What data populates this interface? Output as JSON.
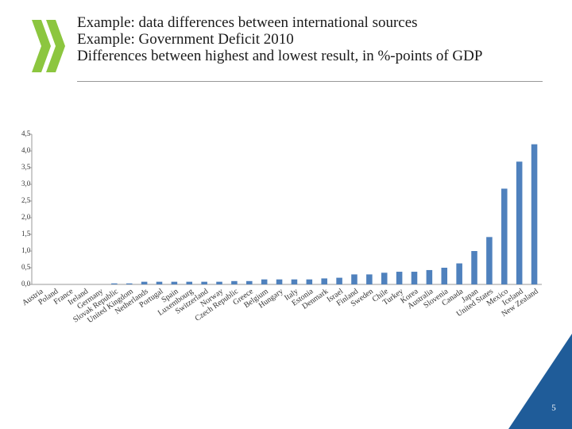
{
  "chart_data": {
    "type": "bar",
    "title_lines": [
      "Example: data differences between international sources",
      "Example: Government Deficit 2010",
      "Differences between highest and lowest result, in %-points of GDP"
    ],
    "categories": [
      "Austria",
      "Poland",
      "France",
      "Ireland",
      "Germany",
      "Slovak Republic",
      "United Kingdom",
      "Netherlands",
      "Portugal",
      "Spain",
      "Luxembourg",
      "Switzerland",
      "Norway",
      "Czech Republic",
      "Greece",
      "Belgium",
      "Hungary",
      "Italy",
      "Estonia",
      "Denmark",
      "Israel",
      "Finland",
      "Sweden",
      "Chile",
      "Turkey",
      "Korea",
      "Australia",
      "Slovenia",
      "Canada",
      "Japan",
      "United States",
      "Mexico",
      "Iceland",
      "New Zealand"
    ],
    "values": [
      0,
      0,
      0,
      0,
      0,
      0.03,
      0.03,
      0.08,
      0.08,
      0.08,
      0.08,
      0.08,
      0.08,
      0.1,
      0.1,
      0.15,
      0.15,
      0.15,
      0.15,
      0.18,
      0.2,
      0.3,
      0.3,
      0.35,
      0.38,
      0.38,
      0.43,
      0.5,
      0.63,
      1.0,
      1.42,
      2.87,
      3.68,
      4.2
    ],
    "color": "#4f81bd",
    "ylim": [
      0,
      4.5
    ],
    "yticks": [
      {
        "value": 0,
        "label": "0,0"
      },
      {
        "value": 0.5,
        "label": "0,5"
      },
      {
        "value": 1,
        "label": "1,0"
      },
      {
        "value": 1.5,
        "label": "1,5"
      },
      {
        "value": 2,
        "label": "2,0"
      },
      {
        "value": 2.5,
        "label": "2,5"
      },
      {
        "value": 3,
        "label": "3,0"
      },
      {
        "value": 3.5,
        "label": "3,5"
      },
      {
        "value": 4,
        "label": "4,0"
      },
      {
        "value": 4.5,
        "label": "4,5"
      }
    ],
    "page_number": "5"
  }
}
